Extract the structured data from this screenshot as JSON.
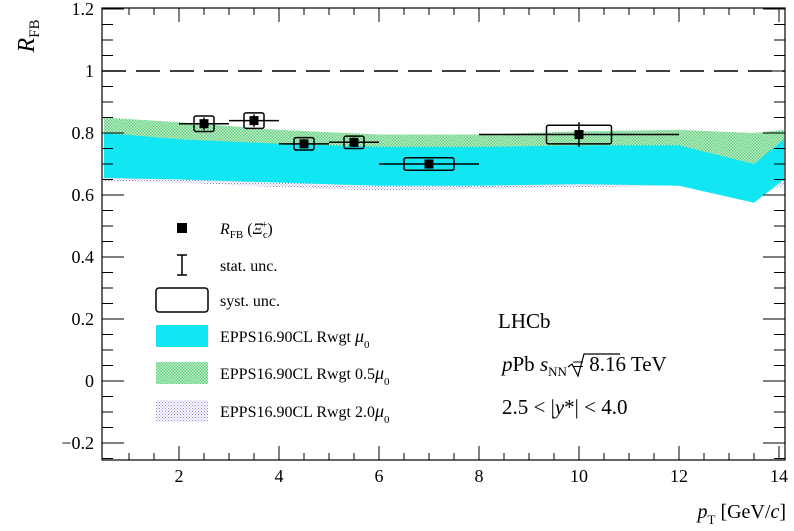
{
  "chart_data": {
    "type": "scatter",
    "title": "",
    "xlabel": "p_T [GeV/c]",
    "ylabel": "R_FB",
    "xlim": [
      0.5,
      14.1
    ],
    "ylim": [
      -0.25,
      1.2
    ],
    "x_ticks": [
      "2",
      "4",
      "6",
      "8",
      "10",
      "12",
      "14"
    ],
    "y_ticks": [
      "−0.2",
      "0",
      "0.2",
      "0.4",
      "0.6",
      "0.8",
      "1",
      "1.2"
    ],
    "reference_line": 1.0,
    "series": [
      {
        "name": "R_FB (Ξc+)",
        "x": [
          2.5,
          3.5,
          4.5,
          5.5,
          7.0,
          10.0
        ],
        "y": [
          0.83,
          0.84,
          0.765,
          0.77,
          0.7,
          0.795
        ],
        "x_err": [
          0.5,
          0.5,
          0.5,
          0.5,
          1.0,
          2.0
        ],
        "stat_err": [
          0.02,
          0.02,
          0.015,
          0.015,
          0.015,
          0.04
        ],
        "syst_err": [
          0.025,
          0.025,
          0.02,
          0.02,
          0.02,
          0.03
        ],
        "syst_box_halfwidth": [
          0.2,
          0.2,
          0.2,
          0.2,
          0.5,
          0.65
        ]
      }
    ],
    "bands": [
      {
        "name": "EPPS16.90CL Rwgt 2.0μ0",
        "color": "#8a82d6",
        "x": [
          0.5,
          2,
          4,
          6,
          8,
          10,
          12,
          13.5,
          14.1
        ],
        "lo": [
          0.645,
          0.64,
          0.625,
          0.615,
          0.62,
          0.625,
          0.63,
          0.6,
          0.63
        ],
        "hi": [
          0.84,
          0.82,
          0.795,
          0.78,
          0.78,
          0.79,
          0.8,
          0.79,
          0.8
        ]
      },
      {
        "name": "EPPS16.90CL Rwgt 0.5μ0",
        "color": "#5ccf7a",
        "x": [
          0.5,
          2,
          4,
          6,
          8,
          10,
          12,
          13.5,
          14.1
        ],
        "lo": [
          0.665,
          0.66,
          0.645,
          0.635,
          0.64,
          0.645,
          0.65,
          0.62,
          0.66
        ],
        "hi": [
          0.85,
          0.835,
          0.81,
          0.795,
          0.795,
          0.805,
          0.81,
          0.8,
          0.81
        ]
      },
      {
        "name": "EPPS16.90CL Rwgt μ0",
        "color": "#11e6f2",
        "x": [
          0.5,
          2,
          4,
          6,
          8,
          10,
          12,
          13.5,
          14.1
        ],
        "lo": [
          0.655,
          0.65,
          0.64,
          0.63,
          0.63,
          0.635,
          0.63,
          0.575,
          0.65
        ],
        "hi": [
          0.8,
          0.78,
          0.765,
          0.755,
          0.755,
          0.76,
          0.76,
          0.7,
          0.78
        ]
      }
    ],
    "legend": {
      "position": "bottom-left",
      "items": [
        {
          "name": "data",
          "label": "R_FB (Ξc+)"
        },
        {
          "name": "stat",
          "label": "stat. unc."
        },
        {
          "name": "syst",
          "label": "syst. unc."
        },
        {
          "name": "band-mu0",
          "label": "EPPS16.90CL Rwgt  μ0"
        },
        {
          "name": "band-0.5mu0",
          "label": "EPPS16.90CL Rwgt  0.5μ0"
        },
        {
          "name": "band-2mu0",
          "label": "EPPS16.90CL Rwgt  2.0μ0"
        }
      ]
    },
    "annotations": [
      "LHCb",
      "pPb  √sNN = 8.16 TeV",
      "2.5 < |y*| < 4.0"
    ]
  }
}
